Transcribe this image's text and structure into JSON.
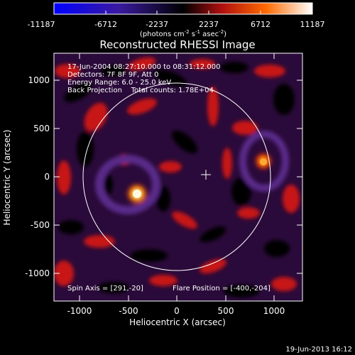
{
  "colorbar": {
    "ticks": [
      "-11187",
      "-6712",
      "-2237",
      "2237",
      "6712",
      "11187"
    ],
    "unit_main": "(photons cm",
    "unit_sup1": "-2",
    "unit_mid": " s",
    "unit_sup2": "-1",
    "unit_after": " asec",
    "unit_sup3": "-2",
    "unit_close": ")"
  },
  "plot": {
    "title": "Reconstructed RHESSI Image",
    "info_lines": [
      "17-Jun-2004 08:27:10.000 to 08:31:12.000",
      "Detectors: 7F 8F 9F, Att 0",
      "Energy Range: 6.0 - 25.0 keV",
      "Back Projection    Total counts: 1.78E+04"
    ],
    "spin_axis": "Spin Axis = [291,-20]",
    "flare_position": "Flare Position = [-400,-204]",
    "x_axis_label": "Heliocentric X (arcsec)",
    "y_axis_label": "Heliocentric Y (arcsec)",
    "x_ticks": [
      "-1000",
      "-500",
      "0",
      "500",
      "1000"
    ],
    "y_ticks": [
      "1000",
      "500",
      "0",
      "-500",
      "-1000"
    ]
  },
  "footer": {
    "timestamp": "19-Jun-2013 16:12"
  }
}
